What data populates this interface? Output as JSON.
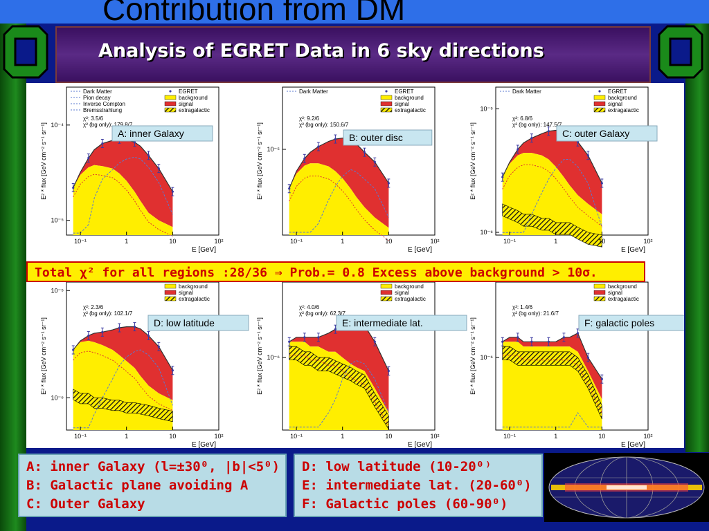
{
  "slide": {
    "bg_title": "Contribution from DM",
    "banner_title": "Analysis of EGRET Data in 6 sky directions",
    "chi_banner": "Total χ² for all regions :28/36 ⇒ Prob.= 0.8 Excess above background > 10σ.",
    "info_left": [
      "A: inner Galaxy (l=±30⁰, |b|<5⁰)",
      "B: Galactic plane avoiding A",
      "C: Outer Galaxy"
    ],
    "info_right": [
      "D: low latitude (10-20⁰⁾",
      "E: intermediate lat. (20-60⁰)",
      "F: Galactic poles (60-90⁰)"
    ]
  },
  "colors": {
    "background": "#ffee00",
    "signal": "#e03030",
    "extragalactic": "#111111",
    "dark_matter": "#5a7ad0",
    "pion_decay": "#e03030",
    "inverse_compton": "#40b040",
    "bremsstrahlung": "#40a0c0",
    "data": "#3a3aa0"
  },
  "chart_data": [
    {
      "type": "area",
      "panel": "A: inner Galaxy",
      "xlabel": "E [GeV]",
      "ylabel": "E² * flux [GeV cm⁻² s⁻¹ sr⁻¹]",
      "x_ticks": [
        "10⁻¹",
        "1",
        "10",
        "10²"
      ],
      "y_ticks": [
        "10⁻⁵",
        "10⁻⁴"
      ],
      "xlim": [
        0.05,
        100
      ],
      "ylim": [
        7e-06,
        0.00025
      ],
      "legend": [
        {
          "label": "Dark Matter",
          "style": "dashed"
        },
        {
          "label": "Pion decay",
          "style": "dashed"
        },
        {
          "label": "Inverse Compton",
          "style": "dashed"
        },
        {
          "label": "Bremsstrahlung",
          "style": "dashed"
        },
        {
          "label": "EGRET",
          "style": "point"
        },
        {
          "label": "background",
          "style": "fill"
        },
        {
          "label": "signal",
          "style": "fill"
        },
        {
          "label": "extragalactic",
          "style": "hatch"
        }
      ],
      "chi2": "χ²: 3.5/6",
      "chi2_bg": "χ² (bg only): 179.8/7",
      "x": [
        0.07,
        0.1,
        0.15,
        0.2,
        0.3,
        0.5,
        0.7,
        1,
        1.5,
        2,
        3,
        5,
        10
      ],
      "total": [
        2.2e-05,
        3.2e-05,
        4.5e-05,
        5.5e-05,
        6.4e-05,
        6.9e-05,
        7.1e-05,
        7e-05,
        6.6e-05,
        6e-05,
        4.8e-05,
        3.5e-05,
        2e-05
      ],
      "background": [
        2.2e-05,
        3e-05,
        3.6e-05,
        3.8e-05,
        3.7e-05,
        3.5e-05,
        3.1e-05,
        2.6e-05,
        2e-05,
        1.6e-05,
        1.2e-05,
        1e-05,
        8.5e-06
      ],
      "extragalactic": null
    },
    {
      "type": "area",
      "panel": "B: outer disc",
      "xlabel": "E [GeV]",
      "ylabel": "E² * flux [GeV cm⁻² s⁻¹ sr⁻¹]",
      "x_ticks": [
        "10⁻¹",
        "1",
        "10",
        "10²"
      ],
      "y_ticks": [
        "10⁻⁵"
      ],
      "xlim": [
        0.05,
        100
      ],
      "ylim": [
        2.2e-06,
        3e-05
      ],
      "legend": [
        {
          "label": "Dark Matter",
          "style": "dashed"
        },
        {
          "label": "EGRET",
          "style": "point"
        },
        {
          "label": "background",
          "style": "fill"
        },
        {
          "label": "signal",
          "style": "fill"
        },
        {
          "label": "extragalactic",
          "style": "hatch"
        }
      ],
      "chi2": "χ²: 9.2/6",
      "chi2_bg": "χ² (bg only): 150.6/7",
      "x": [
        0.07,
        0.1,
        0.15,
        0.2,
        0.3,
        0.5,
        0.7,
        1,
        1.5,
        2,
        3,
        5,
        10
      ],
      "total": [
        5e-06,
        6.8e-06,
        8.5e-06,
        9.5e-06,
        1.05e-05,
        1.15e-05,
        1.2e-05,
        1.22e-05,
        1.2e-05,
        1.1e-05,
        9.5e-06,
        8e-06,
        5.5e-06
      ],
      "background": [
        5e-06,
        6.5e-06,
        7.5e-06,
        7.8e-06,
        7.8e-06,
        7.4e-06,
        6.8e-06,
        6e-06,
        5e-06,
        4.3e-06,
        3.6e-06,
        3e-06,
        2.5e-06
      ],
      "extragalactic": null
    },
    {
      "type": "area",
      "panel": "C: outer Galaxy",
      "xlabel": "E [GeV]",
      "ylabel": "E² * flux [GeV cm⁻² s⁻¹ sr⁻¹]",
      "x_ticks": [
        "10⁻¹",
        "1",
        "10",
        "10²"
      ],
      "y_ticks": [
        "10⁻⁶",
        "10⁻⁵"
      ],
      "xlim": [
        0.05,
        100
      ],
      "ylim": [
        9.5e-07,
        1.5e-05
      ],
      "legend": [
        {
          "label": "Dark Matter",
          "style": "dashed"
        },
        {
          "label": "EGRET",
          "style": "point"
        },
        {
          "label": "background",
          "style": "fill"
        },
        {
          "label": "signal",
          "style": "fill"
        },
        {
          "label": "extragalactic",
          "style": "hatch"
        }
      ],
      "chi2": "χ²: 6.8/6",
      "chi2_bg": "χ² (bg only): 147.5/7",
      "x": [
        0.07,
        0.1,
        0.15,
        0.2,
        0.3,
        0.5,
        0.7,
        1,
        1.5,
        2,
        3,
        5,
        10
      ],
      "total": [
        2.8e-06,
        3.7e-06,
        4.7e-06,
        5.3e-06,
        5.8e-06,
        6.3e-06,
        6.6e-06,
        6.7e-06,
        6.7e-06,
        6.3e-06,
        5.4e-06,
        4.2e-06,
        2.5e-06
      ],
      "background": [
        2.8e-06,
        3.6e-06,
        4.2e-06,
        4.4e-06,
        4.4e-06,
        4.2e-06,
        3.9e-06,
        3.4e-06,
        2.8e-06,
        2.4e-06,
        2e-06,
        1.7e-06,
        1.4e-06
      ],
      "extragalactic": [
        1.7e-06,
        1.6e-06,
        1.5e-06,
        1.4e-06,
        1.4e-06,
        1.3e-06,
        1.3e-06,
        1.2e-06,
        1.2e-06,
        1.2e-06,
        1.1e-06,
        1e-06,
        9.5e-07
      ]
    },
    {
      "type": "area",
      "panel": "D: low latitude",
      "xlabel": "E [GeV]",
      "ylabel": "E² * flux [GeV cm⁻² s⁻¹ sr⁻¹]",
      "x_ticks": [
        "10⁻¹",
        "1",
        "10",
        "10²"
      ],
      "y_ticks": [
        "10⁻⁶",
        "10⁻⁵"
      ],
      "xlim": [
        0.05,
        100
      ],
      "ylim": [
        5e-07,
        1.2e-05
      ],
      "legend": [
        {
          "label": "background",
          "style": "fill"
        },
        {
          "label": "signal",
          "style": "fill"
        },
        {
          "label": "extragalactic",
          "style": "hatch"
        }
      ],
      "chi2": "χ²: 2.3/6",
      "chi2_bg": "χ² (bg only): 102.1/7",
      "x": [
        0.07,
        0.1,
        0.15,
        0.2,
        0.3,
        0.5,
        0.7,
        1,
        1.5,
        2,
        3,
        5,
        10
      ],
      "total": [
        2.8e-06,
        3.4e-06,
        3.8e-06,
        4e-06,
        4.1e-06,
        4.3e-06,
        4.5e-06,
        4.6e-06,
        4.6e-06,
        4.4e-06,
        3.8e-06,
        3e-06,
        1.8e-06
      ],
      "background": [
        2.8e-06,
        3.3e-06,
        3.4e-06,
        3.3e-06,
        3.1e-06,
        2.8e-06,
        2.5e-06,
        2.2e-06,
        1.9e-06,
        1.6e-06,
        1.3e-06,
        1.1e-06,
        9.5e-07
      ],
      "extragalactic": [
        1.2e-06,
        1.1e-06,
        1.1e-06,
        1e-06,
        1e-06,
        9.5e-07,
        9.5e-07,
        9e-07,
        9e-07,
        8.8e-07,
        8.5e-07,
        8e-07,
        7.5e-07
      ]
    },
    {
      "type": "area",
      "panel": "E: intermediate lat.",
      "xlabel": "E [GeV]",
      "ylabel": "E² * flux [GeV cm⁻² s⁻¹ sr⁻¹]",
      "x_ticks": [
        "10⁻¹",
        "1",
        "10",
        "10²"
      ],
      "y_ticks": [
        "10⁻⁶"
      ],
      "xlim": [
        0.05,
        100
      ],
      "ylim": [
        3e-07,
        3.5e-06
      ],
      "legend": [
        {
          "label": "background",
          "style": "fill"
        },
        {
          "label": "signal",
          "style": "fill"
        },
        {
          "label": "extragalactic",
          "style": "hatch"
        }
      ],
      "chi2": "χ²: 4.0/6",
      "chi2_bg": "χ² (bg only): 62.3/7",
      "x": [
        0.07,
        0.1,
        0.15,
        0.2,
        0.3,
        0.5,
        0.7,
        1,
        1.5,
        2,
        3,
        5,
        10
      ],
      "total": [
        1.3e-06,
        1.4e-06,
        1.4e-06,
        1.4e-06,
        1.4e-06,
        1.5e-06,
        1.6e-06,
        1.7e-06,
        1.8e-06,
        1.8e-06,
        1.7e-06,
        1.3e-06,
        8e-07
      ],
      "background": [
        1.3e-06,
        1.3e-06,
        1.3e-06,
        1.2e-06,
        1.2e-06,
        1.1e-06,
        1.1e-06,
        1e-06,
        9e-07,
        8.5e-07,
        8e-07,
        6e-07,
        4e-07
      ],
      "extragalactic": [
        1.2e-06,
        1.2e-06,
        1.1e-06,
        1.1e-06,
        1e-06,
        1e-06,
        9.5e-07,
        9e-07,
        8.5e-07,
        8e-07,
        7.5e-07,
        5.5e-07,
        3.8e-07
      ]
    },
    {
      "type": "area",
      "panel": "F: galactic poles",
      "xlabel": "E [GeV]",
      "ylabel": "E² * flux [GeV cm⁻² s⁻¹ sr⁻¹]",
      "x_ticks": [
        "10⁻¹",
        "1",
        "10",
        "10²"
      ],
      "y_ticks": [
        "10⁻⁶"
      ],
      "xlim": [
        0.05,
        100
      ],
      "ylim": [
        3e-07,
        3.5e-06
      ],
      "legend": [
        {
          "label": "background",
          "style": "fill"
        },
        {
          "label": "signal",
          "style": "fill"
        },
        {
          "label": "extragalactic",
          "style": "hatch"
        }
      ],
      "chi2": "χ²: 1.4/6",
      "chi2_bg": "χ² (bg only): 21.6/7",
      "x": [
        0.07,
        0.1,
        0.15,
        0.2,
        0.3,
        0.5,
        0.7,
        1,
        1.5,
        2,
        3,
        5,
        10
      ],
      "total": [
        1.3e-06,
        1.4e-06,
        1.4e-06,
        1.3e-06,
        1.3e-06,
        1.3e-06,
        1.3e-06,
        1.3e-06,
        1.4e-06,
        1.4e-06,
        1.5e-06,
        1e-06,
        7e-07
      ],
      "background": [
        1.3e-06,
        1.3e-06,
        1.3e-06,
        1.2e-06,
        1.2e-06,
        1.2e-06,
        1.2e-06,
        1.2e-06,
        1.2e-06,
        1.2e-06,
        1.1e-06,
        8e-07,
        5e-07
      ],
      "extragalactic": [
        1.2e-06,
        1.2e-06,
        1.1e-06,
        1.1e-06,
        1.1e-06,
        1.1e-06,
        1.1e-06,
        1.1e-06,
        1.1e-06,
        1.1e-06,
        1e-06,
        7.5e-07,
        4.5e-07
      ]
    }
  ]
}
